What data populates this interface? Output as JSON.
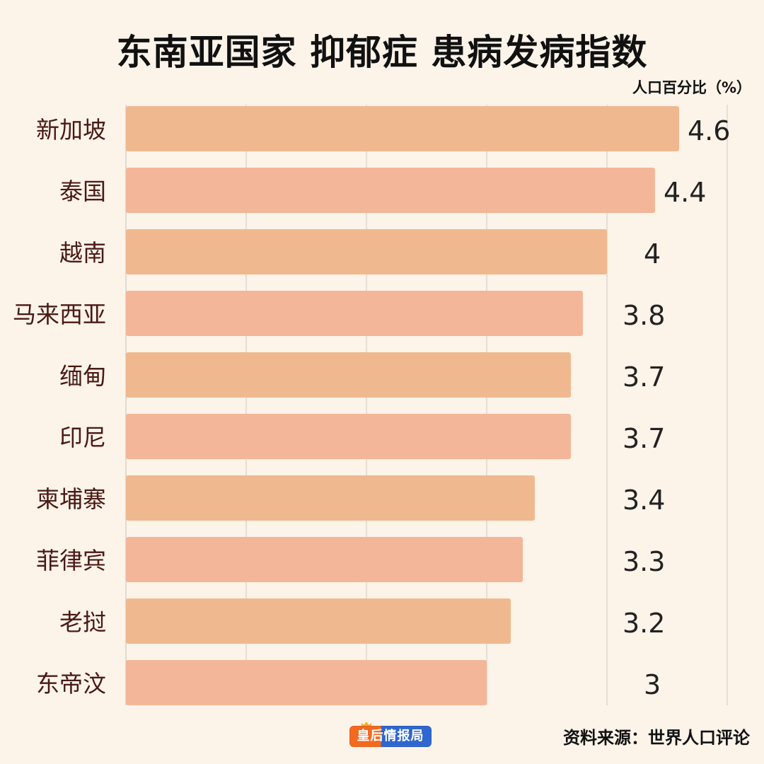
{
  "title": "东南亚国家  抑郁症  患病发病指数",
  "unit_label": "人口百分比（%）",
  "source": "资料来源：世界人口评论",
  "logo_text": "皇后情报局",
  "colors": {
    "background": "#fcf3e9",
    "bar": "#f3b698",
    "bar_alt": "#f0b88f",
    "grid": "#d7d1cb",
    "category_text": "#4a1a14"
  },
  "chart_data": {
    "type": "bar",
    "orientation": "horizontal",
    "categories": [
      "新加坡",
      "泰国",
      "越南",
      "马来西亚",
      "缅甸",
      "印尼",
      "柬埔寨",
      "菲律宾",
      "老挝",
      "东帝汶"
    ],
    "values": [
      4.6,
      4.4,
      4,
      3.8,
      3.7,
      3.7,
      3.4,
      3.3,
      3.2,
      3
    ],
    "value_labels": [
      "4.6",
      "4.4",
      "4",
      "3.8",
      "3.7",
      "3.7",
      "3.4",
      "3.3",
      "3.2",
      "3"
    ],
    "title": "东南亚国家  抑郁症  患病发病指数",
    "xlabel": "人口百分比（%）",
    "ylabel": "",
    "xlim": [
      0,
      5
    ],
    "grid": true,
    "legend": "none"
  }
}
